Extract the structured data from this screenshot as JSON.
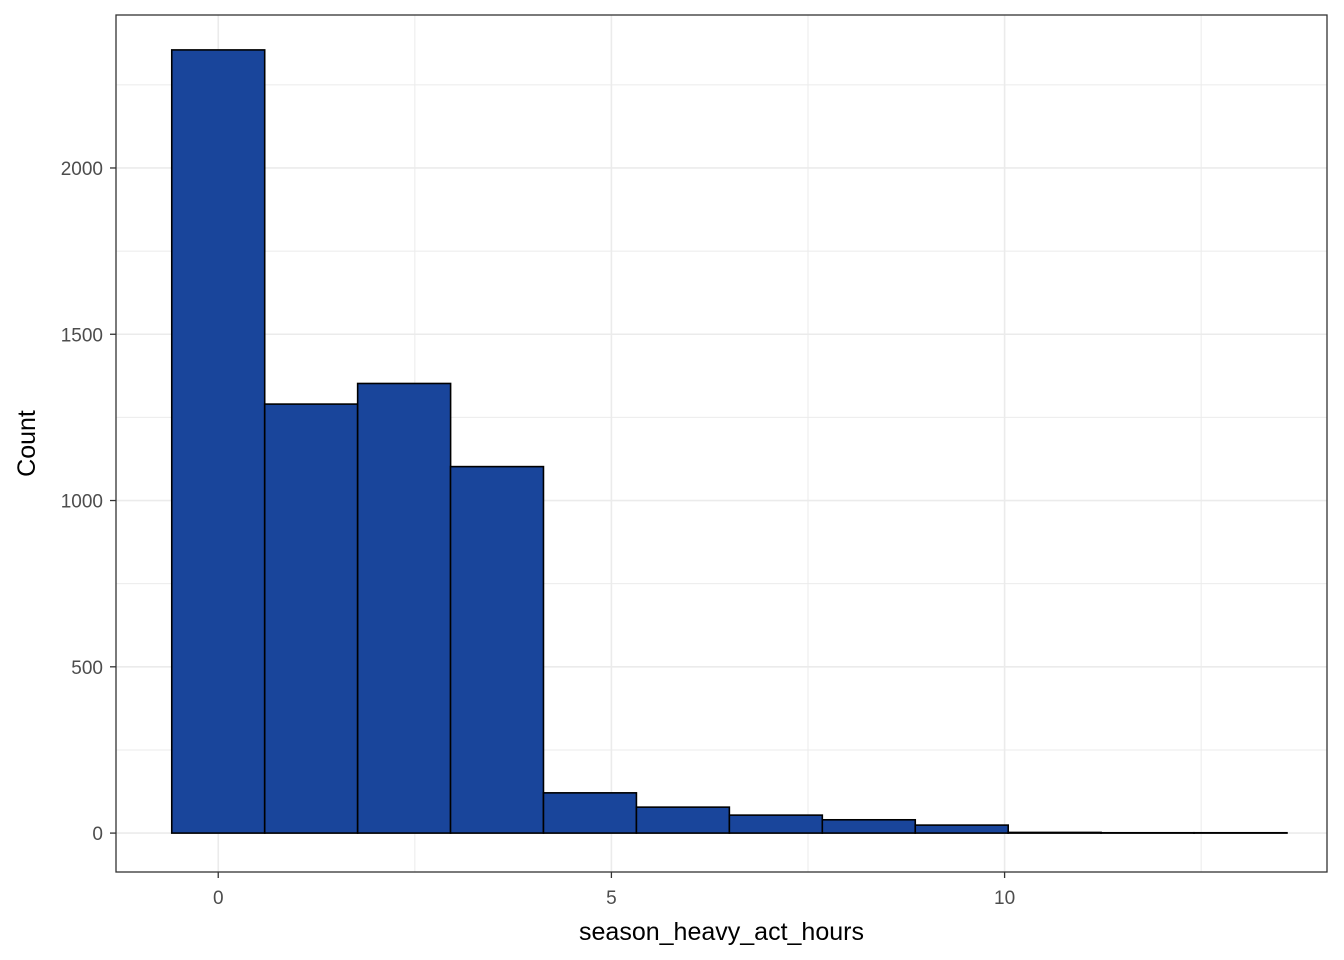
{
  "chart_data": {
    "type": "bar",
    "subtype": "histogram",
    "title": "",
    "xlabel": "season_heavy_act_hours",
    "ylabel": "Count",
    "xlim": [
      -1.3,
      14.1
    ],
    "ylim": [
      -117,
      2460
    ],
    "x_ticks": [
      0,
      5,
      10
    ],
    "x_tick_labels": [
      "0",
      "5",
      "10"
    ],
    "y_ticks": [
      0,
      500,
      1000,
      1500,
      2000
    ],
    "y_tick_labels": [
      "0",
      "500",
      "1000",
      "1500",
      "2000"
    ],
    "bin_width": 1.182,
    "bin_centers": [
      0.0,
      1.182,
      2.364,
      3.545,
      4.727,
      5.909,
      7.091,
      8.273,
      9.455,
      10.636,
      11.818,
      13.0
    ],
    "values": [
      2355,
      1290,
      1352,
      1102,
      121,
      78,
      54,
      40,
      24,
      2,
      1,
      1
    ],
    "grid": true,
    "bar_color": "#19459B",
    "bar_edge_color": "#000000",
    "panel_border_color": "#333333",
    "grid_color": "#ebebeb"
  }
}
